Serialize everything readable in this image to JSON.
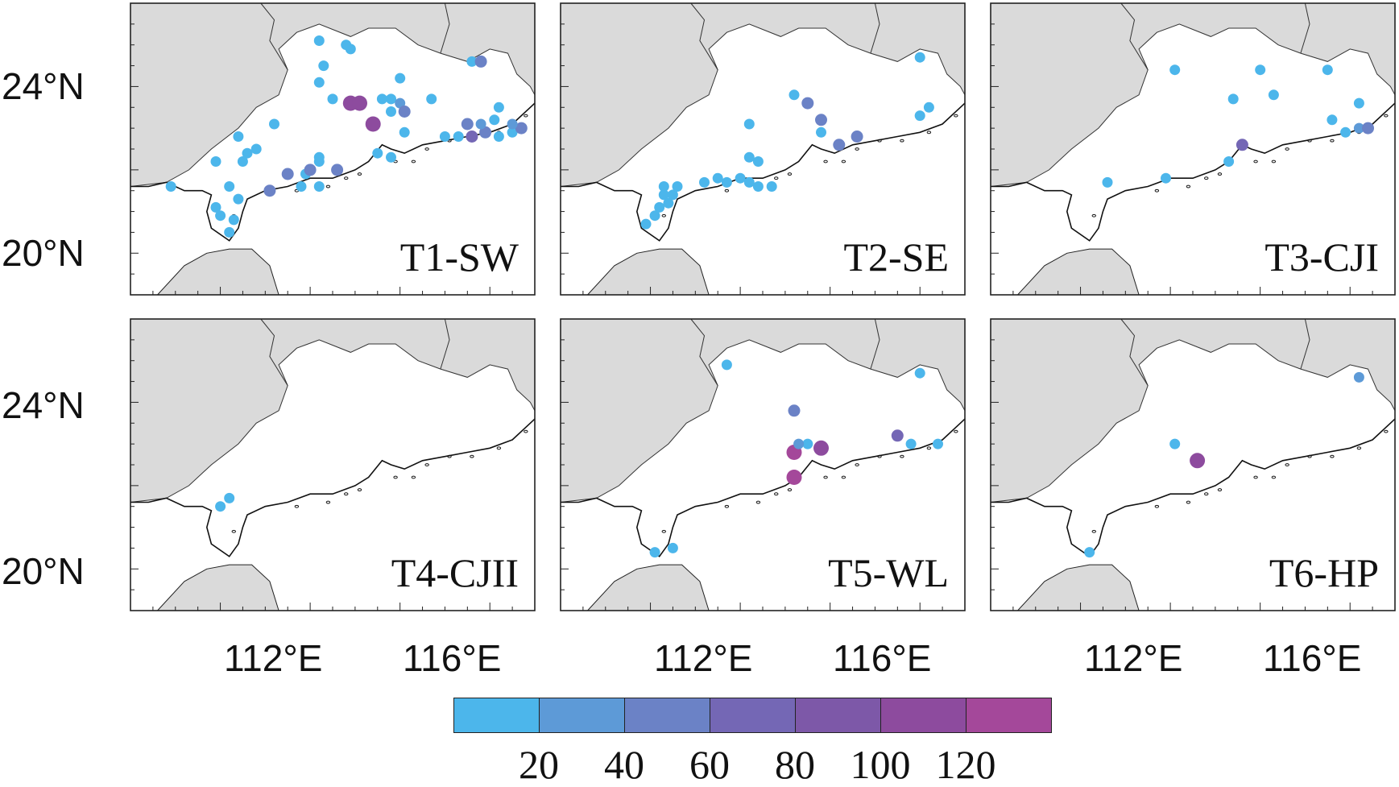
{
  "figure": {
    "lat_labels": [
      "24°N",
      "20°N"
    ],
    "lon_labels": [
      "112°E",
      "116°E"
    ],
    "panels": [
      {
        "label": "T1-SW",
        "stations": [
          {
            "lon": 108.9,
            "lat": 21.6,
            "v": 10
          },
          {
            "lon": 109.9,
            "lat": 22.2,
            "v": 10
          },
          {
            "lon": 109.9,
            "lat": 21.1,
            "v": 10
          },
          {
            "lon": 110.0,
            "lat": 20.9,
            "v": 10
          },
          {
            "lon": 110.2,
            "lat": 20.5,
            "v": 10
          },
          {
            "lon": 110.3,
            "lat": 20.8,
            "v": 10
          },
          {
            "lon": 110.2,
            "lat": 21.6,
            "v": 10
          },
          {
            "lon": 110.4,
            "lat": 21.3,
            "v": 10
          },
          {
            "lon": 110.4,
            "lat": 22.8,
            "v": 10
          },
          {
            "lon": 110.5,
            "lat": 22.2,
            "v": 10
          },
          {
            "lon": 110.6,
            "lat": 22.4,
            "v": 10
          },
          {
            "lon": 110.8,
            "lat": 22.5,
            "v": 10
          },
          {
            "lon": 111.2,
            "lat": 23.1,
            "v": 10
          },
          {
            "lon": 111.1,
            "lat": 21.5,
            "v": 50
          },
          {
            "lon": 111.5,
            "lat": 21.9,
            "v": 40
          },
          {
            "lon": 111.8,
            "lat": 21.6,
            "v": 10
          },
          {
            "lon": 111.9,
            "lat": 21.9,
            "v": 10
          },
          {
            "lon": 112.0,
            "lat": 22.0,
            "v": 55
          },
          {
            "lon": 112.2,
            "lat": 21.6,
            "v": 10
          },
          {
            "lon": 112.2,
            "lat": 22.3,
            "v": 10
          },
          {
            "lon": 112.2,
            "lat": 22.2,
            "v": 10
          },
          {
            "lon": 112.6,
            "lat": 22.0,
            "v": 50
          },
          {
            "lon": 112.2,
            "lat": 24.1,
            "v": 10
          },
          {
            "lon": 112.3,
            "lat": 24.5,
            "v": 10
          },
          {
            "lon": 112.2,
            "lat": 25.1,
            "v": 10
          },
          {
            "lon": 112.8,
            "lat": 25.0,
            "v": 10
          },
          {
            "lon": 112.9,
            "lat": 24.9,
            "v": 10
          },
          {
            "lon": 112.5,
            "lat": 23.7,
            "v": 10
          },
          {
            "lon": 112.9,
            "lat": 23.6,
            "v": 115
          },
          {
            "lon": 113.1,
            "lat": 23.6,
            "v": 100
          },
          {
            "lon": 113.4,
            "lat": 23.1,
            "v": 105
          },
          {
            "lon": 113.6,
            "lat": 23.7,
            "v": 10
          },
          {
            "lon": 113.8,
            "lat": 23.7,
            "v": 10
          },
          {
            "lon": 113.8,
            "lat": 23.4,
            "v": 10
          },
          {
            "lon": 114.0,
            "lat": 23.6,
            "v": 30
          },
          {
            "lon": 114.1,
            "lat": 23.4,
            "v": 40
          },
          {
            "lon": 114.0,
            "lat": 24.2,
            "v": 10
          },
          {
            "lon": 114.1,
            "lat": 22.9,
            "v": 10
          },
          {
            "lon": 113.5,
            "lat": 22.4,
            "v": 10
          },
          {
            "lon": 113.8,
            "lat": 22.3,
            "v": 10
          },
          {
            "lon": 114.7,
            "lat": 23.7,
            "v": 10
          },
          {
            "lon": 115.0,
            "lat": 22.8,
            "v": 10
          },
          {
            "lon": 115.3,
            "lat": 22.8,
            "v": 10
          },
          {
            "lon": 115.6,
            "lat": 24.6,
            "v": 10
          },
          {
            "lon": 115.8,
            "lat": 24.6,
            "v": 55
          },
          {
            "lon": 115.5,
            "lat": 23.1,
            "v": 50
          },
          {
            "lon": 115.6,
            "lat": 22.8,
            "v": 60
          },
          {
            "lon": 115.9,
            "lat": 22.9,
            "v": 40
          },
          {
            "lon": 115.8,
            "lat": 23.1,
            "v": 30
          },
          {
            "lon": 116.1,
            "lat": 23.2,
            "v": 10
          },
          {
            "lon": 116.2,
            "lat": 23.5,
            "v": 10
          },
          {
            "lon": 116.2,
            "lat": 22.8,
            "v": 10
          },
          {
            "lon": 116.5,
            "lat": 22.9,
            "v": 10
          },
          {
            "lon": 116.7,
            "lat": 23.0,
            "v": 50
          },
          {
            "lon": 116.5,
            "lat": 23.1,
            "v": 30
          }
        ]
      },
      {
        "label": "T2-SE",
        "stations": [
          {
            "lon": 109.9,
            "lat": 20.7,
            "v": 10
          },
          {
            "lon": 110.1,
            "lat": 20.9,
            "v": 10
          },
          {
            "lon": 110.2,
            "lat": 21.1,
            "v": 10
          },
          {
            "lon": 110.4,
            "lat": 21.2,
            "v": 10
          },
          {
            "lon": 110.3,
            "lat": 21.4,
            "v": 10
          },
          {
            "lon": 110.5,
            "lat": 21.4,
            "v": 10
          },
          {
            "lon": 110.3,
            "lat": 21.6,
            "v": 10
          },
          {
            "lon": 110.6,
            "lat": 21.6,
            "v": 10
          },
          {
            "lon": 111.2,
            "lat": 21.7,
            "v": 10
          },
          {
            "lon": 111.5,
            "lat": 21.8,
            "v": 10
          },
          {
            "lon": 111.7,
            "lat": 21.7,
            "v": 10
          },
          {
            "lon": 112.0,
            "lat": 21.8,
            "v": 10
          },
          {
            "lon": 112.2,
            "lat": 21.7,
            "v": 10
          },
          {
            "lon": 112.4,
            "lat": 21.6,
            "v": 10
          },
          {
            "lon": 112.7,
            "lat": 21.6,
            "v": 10
          },
          {
            "lon": 112.2,
            "lat": 22.3,
            "v": 10
          },
          {
            "lon": 112.4,
            "lat": 22.2,
            "v": 10
          },
          {
            "lon": 112.2,
            "lat": 23.1,
            "v": 10
          },
          {
            "lon": 113.2,
            "lat": 23.8,
            "v": 10
          },
          {
            "lon": 113.5,
            "lat": 23.6,
            "v": 45
          },
          {
            "lon": 113.8,
            "lat": 23.2,
            "v": 50
          },
          {
            "lon": 113.8,
            "lat": 22.9,
            "v": 10
          },
          {
            "lon": 114.2,
            "lat": 22.6,
            "v": 55
          },
          {
            "lon": 114.6,
            "lat": 22.8,
            "v": 45
          },
          {
            "lon": 116.0,
            "lat": 24.7,
            "v": 10
          },
          {
            "lon": 116.0,
            "lat": 23.3,
            "v": 10
          },
          {
            "lon": 116.2,
            "lat": 23.5,
            "v": 10
          }
        ]
      },
      {
        "label": "T3-CJI",
        "stations": [
          {
            "lon": 110.6,
            "lat": 21.7,
            "v": 10
          },
          {
            "lon": 111.9,
            "lat": 21.8,
            "v": 10
          },
          {
            "lon": 112.1,
            "lat": 24.4,
            "v": 10
          },
          {
            "lon": 113.4,
            "lat": 23.7,
            "v": 10
          },
          {
            "lon": 113.3,
            "lat": 22.2,
            "v": 10
          },
          {
            "lon": 113.6,
            "lat": 22.6,
            "v": 60
          },
          {
            "lon": 114.0,
            "lat": 24.4,
            "v": 10
          },
          {
            "lon": 114.3,
            "lat": 23.8,
            "v": 10
          },
          {
            "lon": 115.5,
            "lat": 24.4,
            "v": 10
          },
          {
            "lon": 115.6,
            "lat": 23.2,
            "v": 10
          },
          {
            "lon": 115.9,
            "lat": 22.9,
            "v": 10
          },
          {
            "lon": 116.2,
            "lat": 23.0,
            "v": 35
          },
          {
            "lon": 116.4,
            "lat": 23.0,
            "v": 50
          },
          {
            "lon": 116.2,
            "lat": 23.6,
            "v": 10
          }
        ]
      },
      {
        "label": "T4-CJII",
        "stations": [
          {
            "lon": 110.0,
            "lat": 21.5,
            "v": 10
          },
          {
            "lon": 110.2,
            "lat": 21.7,
            "v": 10
          }
        ]
      },
      {
        "label": "T5-WL",
        "stations": [
          {
            "lon": 110.1,
            "lat": 20.4,
            "v": 10
          },
          {
            "lon": 110.5,
            "lat": 20.5,
            "v": 10
          },
          {
            "lon": 111.7,
            "lat": 24.9,
            "v": 10
          },
          {
            "lon": 113.2,
            "lat": 23.8,
            "v": 40
          },
          {
            "lon": 113.2,
            "lat": 22.8,
            "v": 120
          },
          {
            "lon": 113.5,
            "lat": 23.0,
            "v": 10
          },
          {
            "lon": 113.3,
            "lat": 23.0,
            "v": 30
          },
          {
            "lon": 113.8,
            "lat": 22.9,
            "v": 115
          },
          {
            "lon": 113.2,
            "lat": 22.2,
            "v": 125
          },
          {
            "lon": 115.5,
            "lat": 23.2,
            "v": 60
          },
          {
            "lon": 115.8,
            "lat": 23.0,
            "v": 10
          },
          {
            "lon": 116.4,
            "lat": 23.0,
            "v": 10
          },
          {
            "lon": 116.0,
            "lat": 24.7,
            "v": 10
          }
        ]
      },
      {
        "label": "T6-HP",
        "stations": [
          {
            "lon": 110.2,
            "lat": 20.4,
            "v": 10
          },
          {
            "lon": 112.1,
            "lat": 23.0,
            "v": 10
          },
          {
            "lon": 112.6,
            "lat": 22.6,
            "v": 115
          },
          {
            "lon": 116.2,
            "lat": 24.6,
            "v": 30
          }
        ]
      }
    ]
  },
  "colorbar": {
    "colors": [
      "#4cb6eb",
      "#5d9ad7",
      "#6b82c6",
      "#7467b5",
      "#7d58a8",
      "#8d4b9e",
      "#a4489a"
    ],
    "ticks": [
      "20",
      "40",
      "60",
      "80",
      "100",
      "120"
    ]
  }
}
